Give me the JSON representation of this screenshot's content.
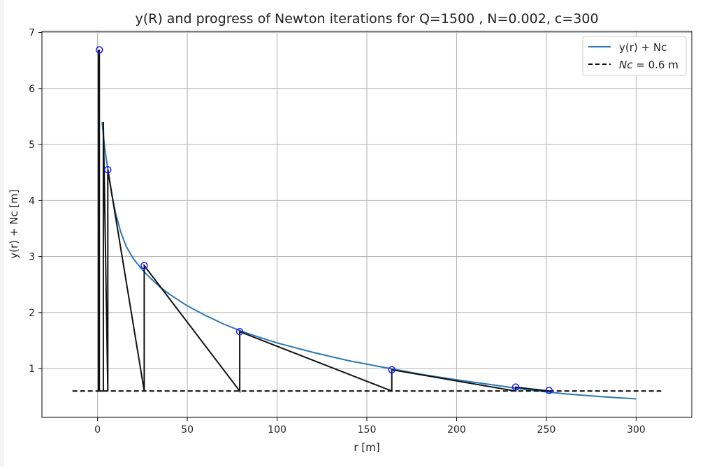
{
  "chart_data": {
    "type": "line",
    "title": "y(R) and progress of Newton iterations for Q=1500 , N=0.002, c=300",
    "xlabel": "r [m]",
    "ylabel": "y(r) + Nc [m]",
    "xlim": [
      -31,
      331
    ],
    "ylim": [
      0.13,
      7.02
    ],
    "xticks": [
      0,
      50,
      100,
      150,
      200,
      250,
      300
    ],
    "yticks": [
      1,
      2,
      3,
      4,
      5,
      6,
      7
    ],
    "grid": true,
    "legend_position": "top-right",
    "colors": {
      "curve": "#2a77b4",
      "newton": "#111111",
      "nc": "#000000",
      "points": "#1a1aff"
    },
    "series": [
      {
        "name": "y(r) + Nc",
        "role": "curve",
        "x": [
          2.5,
          4,
          6,
          8,
          10,
          13,
          16,
          20,
          25,
          30,
          35,
          40,
          50,
          60,
          70,
          80,
          90,
          100,
          120,
          140,
          160,
          180,
          200,
          220,
          240,
          260,
          280,
          300
        ],
        "y": [
          5.4,
          4.93,
          4.5,
          4.1,
          3.78,
          3.43,
          3.18,
          2.96,
          2.76,
          2.6,
          2.45,
          2.33,
          2.12,
          1.95,
          1.8,
          1.67,
          1.56,
          1.46,
          1.29,
          1.14,
          1.02,
          0.9,
          0.8,
          0.71,
          0.62,
          0.55,
          0.5,
          0.46
        ]
      },
      {
        "name": "Nc = 0.6 m",
        "role": "nc",
        "x": [
          -14,
          314
        ],
        "y": [
          0.6,
          0.6
        ]
      }
    ],
    "legend": [
      {
        "text": "y(r) + Nc",
        "style": "solid"
      },
      {
        "prefix": "Nc",
        "text": " = 0.6 m",
        "style": "dashed"
      }
    ],
    "newton_path": {
      "x": [
        0.5,
        0.5,
        1.0,
        1.0,
        3.2,
        3.2,
        5.7,
        5.7,
        26.0,
        26.0,
        79.2,
        79.2,
        163.9,
        163.9,
        232.9,
        232.9,
        251.5,
        251.5
      ],
      "y": [
        0.6,
        6.68,
        6.68,
        0.6,
        0.6,
        5.4,
        0.6,
        4.55,
        0.6,
        2.84,
        0.6,
        1.66,
        0.6,
        0.98,
        0.6,
        0.67,
        0.6,
        0.61
      ]
    },
    "iterates": {
      "x": [
        1.0,
        5.7,
        26.0,
        79.2,
        163.9,
        232.9,
        251.5
      ],
      "y": [
        6.69,
        4.55,
        2.84,
        1.66,
        0.98,
        0.67,
        0.61
      ]
    }
  }
}
